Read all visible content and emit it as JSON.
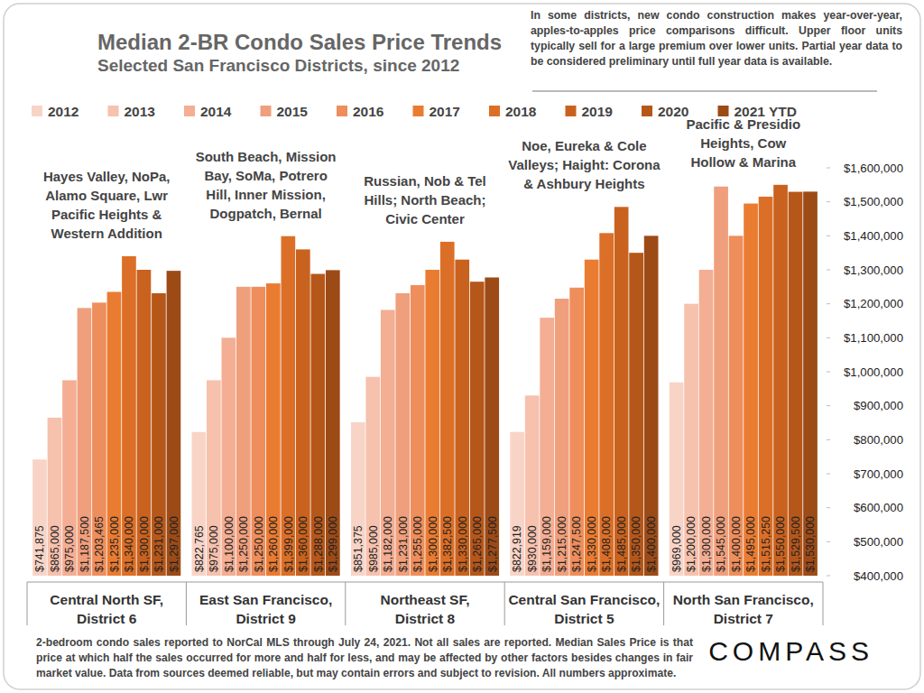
{
  "chart_data": {
    "type": "bar",
    "title": "Median 2-BR Condo Sales Price Trends",
    "subtitle": "Selected San Francisco Districts, since 2012",
    "note": "In some districts, new condo construction makes year-over-year, apples-to-apples price comparisons difficult. Upper floor units typically sell for a large premium over lower units. Partial year data to be considered preliminary until full year data is available.",
    "footer": "2-bedroom condo sales reported to NorCal MLS through July 24, 2021. Not all sales are reported. Median Sales Price is that price at which half the sales occurred for more and half for less, and may be affected by other factors besides changes in fair market value. Data from sources deemed reliable, but may contain errors and subject to revision. All numbers approximate.",
    "logo": "COMPASS",
    "categories": [
      "Central North SF, District 6",
      "East San Francisco, District 9",
      "Northeast SF, District 8",
      "Central San Francisco, District 5",
      "North San Francisco, District 7"
    ],
    "annotations": [
      [
        "Hayes Valley, NoPa,",
        "Alamo Square, Lwr",
        "Pacific Heights &",
        "Western Addition"
      ],
      [
        "South Beach, Mission",
        "Bay, SoMa, Potrero",
        "Hill, Inner Mission,",
        "Dogpatch, Bernal"
      ],
      [
        "Russian, Nob & Tel",
        "Hills; North Beach;",
        "Civic Center"
      ],
      [
        "Noe, Eureka & Cole",
        "Valleys; Haight: Corona",
        "& Ashbury Heights"
      ],
      [
        "Pacific & Presidio",
        "Heights, Cow",
        "Hollow & Marina"
      ]
    ],
    "series": [
      {
        "name": "2012",
        "color": "#f8d4c7",
        "values": [
          741875,
          822765,
          851375,
          822919,
          969000
        ],
        "value_labels": [
          "$741,875",
          "$822,765",
          "$851,375",
          "$822,919",
          "$969,000"
        ]
      },
      {
        "name": "2013",
        "color": "#f6c1ad",
        "values": [
          865000,
          975000,
          985000,
          930000,
          1200000
        ],
        "value_labels": [
          "$865,000",
          "$975,000",
          "$985,000",
          "$930,000",
          "$1,200,000"
        ]
      },
      {
        "name": "2014",
        "color": "#f3ae93",
        "values": [
          975000,
          1100000,
          1182000,
          1159000,
          1300000
        ],
        "value_labels": [
          "$975,000",
          "$1,100,000",
          "$1,182,000",
          "$1,159,000",
          "$1,300,000"
        ]
      },
      {
        "name": "2015",
        "color": "#f09f7c",
        "values": [
          1187500,
          1250000,
          1231000,
          1215000,
          1545000
        ],
        "value_labels": [
          "$1,187,500",
          "$1,250,000",
          "$1,231,000",
          "$1,215,000",
          "$1,545,000"
        ]
      },
      {
        "name": "2016",
        "color": "#ee8e5c",
        "values": [
          1203465,
          1250000,
          1255000,
          1247500,
          1400000
        ],
        "value_labels": [
          "$1,203,465",
          "$1,250,000",
          "$1,255,000",
          "$1,247,500",
          "$1,400,000"
        ]
      },
      {
        "name": "2017",
        "color": "#ea7c32",
        "values": [
          1235000,
          1260000,
          1300000,
          1330000,
          1495000
        ],
        "value_labels": [
          "$1,235,000",
          "$1,260,000",
          "$1,300,000",
          "$1,330,000",
          "$1,495,000"
        ]
      },
      {
        "name": "2018",
        "color": "#dc6f27",
        "values": [
          1340000,
          1399000,
          1382500,
          1408000,
          1515250
        ],
        "value_labels": [
          "$1,340,000",
          "$1,399,000",
          "$1,382,500",
          "$1,408,000",
          "$1,515,250"
        ]
      },
      {
        "name": "2019",
        "color": "#c9621e",
        "values": [
          1300000,
          1360000,
          1330000,
          1485000,
          1550000
        ],
        "value_labels": [
          "$1,300,000",
          "$1,360,000",
          "$1,330,000",
          "$1,485,000",
          "$1,550,000"
        ]
      },
      {
        "name": "2020",
        "color": "#b6571a",
        "values": [
          1231000,
          1288000,
          1265000,
          1350000,
          1529500
        ],
        "value_labels": [
          "$1,231,000",
          "$1,288,000",
          "$1,265,000",
          "$1,350,000",
          "$1,529,500"
        ]
      },
      {
        "name": "2021 YTD",
        "color": "#9c4b17",
        "values": [
          1297000,
          1299000,
          1277500,
          1400000,
          1530000
        ],
        "value_labels": [
          "$1,297,000",
          "$1,299,000",
          "$1,277,500",
          "$1,400,000",
          "$1,530,000"
        ]
      }
    ],
    "ylim": [
      400000,
      1600000
    ],
    "yticks": [
      {
        "value": 400000,
        "label": "$400,000"
      },
      {
        "value": 500000,
        "label": "$500,000"
      },
      {
        "value": 600000,
        "label": "$600,000"
      },
      {
        "value": 700000,
        "label": "$700,000"
      },
      {
        "value": 800000,
        "label": "$800,000"
      },
      {
        "value": 900000,
        "label": "$900,000"
      },
      {
        "value": 1000000,
        "label": "$1,000,000"
      },
      {
        "value": 1100000,
        "label": "$1,100,000"
      },
      {
        "value": 1200000,
        "label": "$1,200,000"
      },
      {
        "value": 1300000,
        "label": "$1,300,000"
      },
      {
        "value": 1400000,
        "label": "$1,400,000"
      },
      {
        "value": 1500000,
        "label": "$1,500,000"
      },
      {
        "value": 1600000,
        "label": "$1,600,000"
      }
    ],
    "grid": false,
    "legend": "top",
    "data_labels": true
  }
}
